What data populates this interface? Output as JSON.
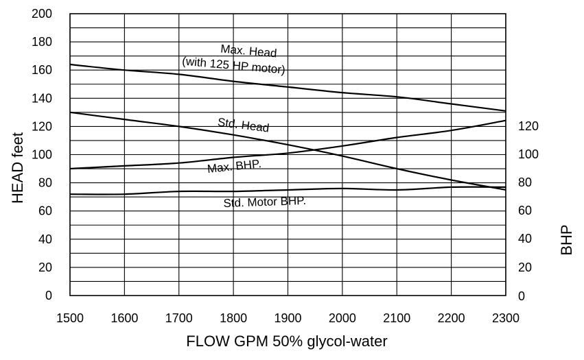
{
  "chart_data": {
    "type": "line",
    "title": "",
    "xlabel": "FLOW GPM 50% glycol-water",
    "ylabel": "HEAD feet",
    "y2label": "BHP",
    "xlim": [
      1500,
      2300
    ],
    "ylim": [
      0,
      200
    ],
    "y2lim": [
      0,
      130
    ],
    "grid": true,
    "x_ticks": [
      "1500",
      "1600",
      "1700",
      "1800",
      "1900",
      "2000",
      "2100",
      "2200",
      "2300"
    ],
    "y_ticks": [
      "0",
      "20",
      "40",
      "60",
      "80",
      "100",
      "120",
      "140",
      "160",
      "180",
      "200"
    ],
    "y2_ticks": [
      "0",
      "20",
      "40",
      "60",
      "80",
      "100",
      "120"
    ],
    "series": [
      {
        "name": "Max. Head (with 125 HP motor)",
        "label_lines": [
          "Max. Head",
          "(with 125 HP motor)"
        ],
        "axis": "left",
        "x": [
          1500,
          1600,
          1700,
          1800,
          1900,
          2000,
          2100,
          2200,
          2300
        ],
        "values": [
          164,
          160,
          157,
          152,
          148,
          144,
          141,
          136,
          131
        ]
      },
      {
        "name": "Std. Head",
        "label_lines": [
          "Std. Head"
        ],
        "axis": "left",
        "x": [
          1500,
          1600,
          1700,
          1800,
          1900,
          2000,
          2100,
          2200,
          2300
        ],
        "values": [
          130,
          125,
          120,
          114,
          107,
          99,
          90,
          82,
          75
        ]
      },
      {
        "name": "Max. BHP.",
        "label_lines": [
          "Max. BHP."
        ],
        "axis": "right",
        "x": [
          1500,
          1600,
          1700,
          1800,
          1900,
          2000,
          2100,
          2200,
          2300
        ],
        "values": [
          90,
          92,
          94,
          98,
          101,
          106,
          112,
          117,
          124
        ]
      },
      {
        "name": "Std. Motor BHP.",
        "label_lines": [
          "Std. Motor BHP."
        ],
        "axis": "right",
        "x": [
          1500,
          1600,
          1700,
          1800,
          1900,
          2000,
          2100,
          2200,
          2300
        ],
        "values": [
          72,
          72,
          74,
          74,
          75,
          76,
          75,
          77,
          77
        ]
      }
    ]
  }
}
